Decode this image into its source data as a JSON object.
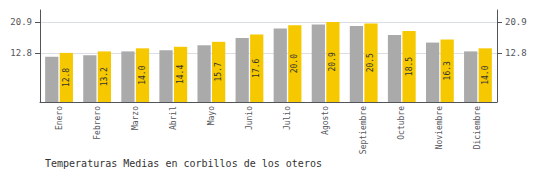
{
  "chart_data": {
    "type": "bar",
    "title": "Temperaturas Medias en corbillos de los oteros",
    "categories": [
      "Enero",
      "Febrero",
      "Marzo",
      "Abril",
      "Mayo",
      "Junio",
      "Julio",
      "Agosto",
      "Septiembre",
      "Octubre",
      "Noviembre",
      "Diciembre"
    ],
    "series": [
      {
        "color": "#AAAAAA",
        "values": [
          11.8,
          12.2,
          13.2,
          13.5,
          14.8,
          16.7,
          19.2,
          20.2,
          19.8,
          17.5,
          15.5,
          13.2
        ]
      },
      {
        "color": "#F5C800",
        "values": [
          12.8,
          13.2,
          14.0,
          14.4,
          15.7,
          17.6,
          20.0,
          20.9,
          20.5,
          18.5,
          16.3,
          14.0
        ],
        "value_labels": [
          "12.8",
          "13.2",
          "14.0",
          "14.4",
          "15.7",
          "17.6",
          "20.0",
          "20.9",
          "20.5",
          "18.5",
          "16.3",
          "14.0"
        ],
        "data_labels": true
      }
    ],
    "ylim": [
      0,
      24.0
    ],
    "yticks": [
      12.8,
      20.9
    ],
    "y2lim": [
      0,
      24.0
    ],
    "y2ticks": [
      12.8,
      20.9
    ],
    "grid": true
  }
}
